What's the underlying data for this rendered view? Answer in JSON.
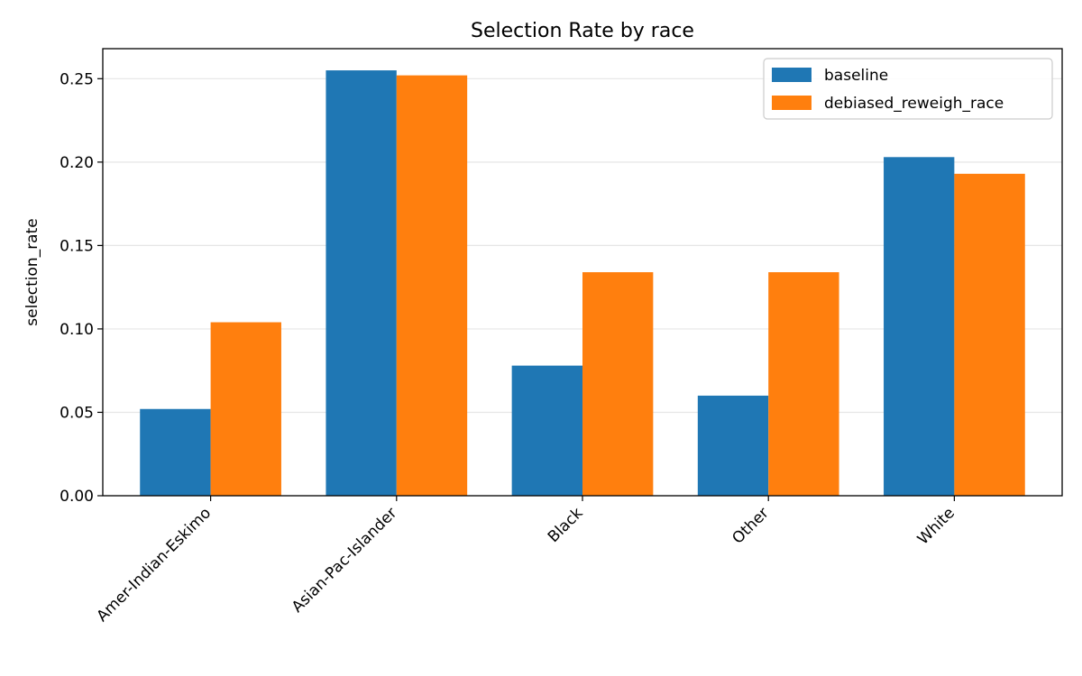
{
  "chart_data": {
    "type": "bar",
    "title": "Selection Rate by race",
    "xlabel": "",
    "ylabel": "selection_rate",
    "categories": [
      "Amer-Indian-Eskimo",
      "Asian-Pac-Islander",
      "Black",
      "Other",
      "White"
    ],
    "series": [
      {
        "name": "baseline",
        "color": "#1f77b4",
        "values": [
          0.052,
          0.255,
          0.078,
          0.06,
          0.203
        ]
      },
      {
        "name": "debiased_reweigh_race",
        "color": "#ff7f0e",
        "values": [
          0.104,
          0.252,
          0.134,
          0.134,
          0.193
        ]
      }
    ],
    "ylim": [
      0,
      0.268
    ],
    "yticks": [
      0.0,
      0.05,
      0.1,
      0.15,
      0.2,
      0.25
    ],
    "ytick_labels": [
      "0.00",
      "0.05",
      "0.10",
      "0.15",
      "0.20",
      "0.25"
    ],
    "grid": "horizontal",
    "legend_position": "top-right"
  }
}
